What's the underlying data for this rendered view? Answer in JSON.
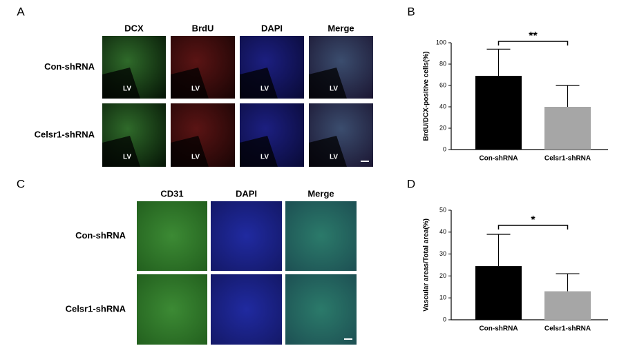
{
  "panels": [
    {
      "label": "A",
      "columns": [
        "DCX",
        "BrdU",
        "DAPI",
        "Merge"
      ],
      "rows": [
        "Con-shRNA",
        "Celsr1-shRNA"
      ],
      "image_label": "LV"
    },
    {
      "label": "C",
      "columns": [
        "CD31",
        "DAPI",
        "Merge"
      ],
      "rows": [
        "Con-shRNA",
        "Celsr1-shRNA"
      ]
    }
  ],
  "chart_data": [
    {
      "type": "bar",
      "panel_label": "B",
      "ylabel": "BrdU/DCX-positive cells(%)",
      "categories": [
        "Con-shRNA",
        "Celsr1-shRNA"
      ],
      "values": [
        69,
        40
      ],
      "errors": [
        25,
        20
      ],
      "colors": [
        "#000000",
        "#a6a6a6"
      ],
      "ylim": [
        0,
        100
      ],
      "yticks": [
        0,
        20,
        40,
        60,
        80,
        100
      ],
      "annotation": "**"
    },
    {
      "type": "bar",
      "panel_label": "D",
      "ylabel": "Vascular areas/Total area(%)",
      "categories": [
        "Con-shRNA",
        "Celsr1-shRNA"
      ],
      "values": [
        24.5,
        13
      ],
      "errors": [
        14.5,
        8
      ],
      "colors": [
        "#000000",
        "#a6a6a6"
      ],
      "ylim": [
        0,
        50
      ],
      "yticks": [
        0,
        10,
        20,
        30,
        40,
        50
      ],
      "annotation": "*"
    }
  ]
}
